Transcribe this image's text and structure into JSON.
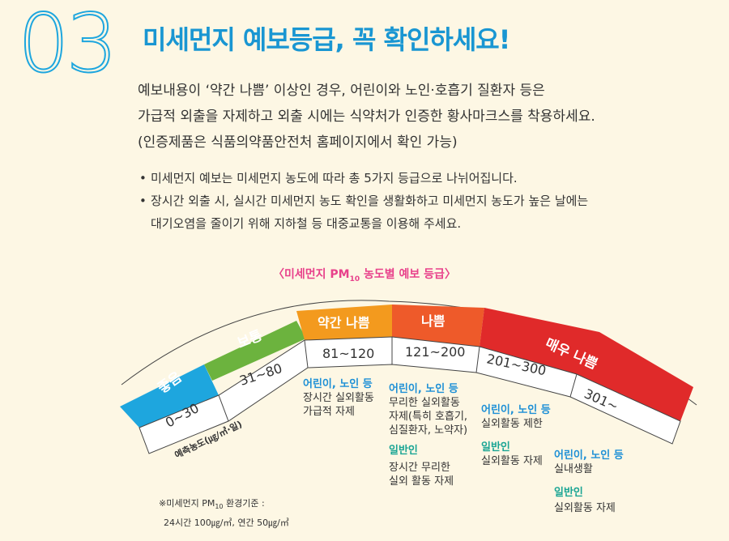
{
  "header": {
    "number": "03",
    "title": "미세먼지 예보등급, 꼭 확인하세요!"
  },
  "intro": {
    "line1": "예보내용이 ‘약간 나쁨’ 이상인 경우, 어린이와 노인·호흡기 질환자 등은",
    "line2": "가급적 외출을 자제하고 외출 시에는 식약처가 인증한 황사마크스를 착용하세요.",
    "line3": "(인증제품은 식품의약품안전처 홈페이지에서 확인 가능)"
  },
  "bullets": {
    "b1": "미세먼지 예보는 미세먼지 농도에 따라 총 5가지 등급으로 나뉘어집니다.",
    "b2_line1": "장시간 외출 시, 실시간 미세먼지 농도 확인을 생활화하고 미세먼지 농도가 높은 날에는",
    "b2_line2": "대기오염을 줄이기 위해 지하철 등 대중교통을 이용해 주세요."
  },
  "chart": {
    "title_pre": "〈미세먼지 PM",
    "title_sub": "10",
    "title_post": " 농도별 예보 등급〉",
    "unit_label": "예측농도(㎍/㎥·일)",
    "grades": [
      {
        "name": "좋음",
        "range": "0~30",
        "color": "#1ea6de"
      },
      {
        "name": "보통",
        "range": "31~80",
        "color": "#6cb33e"
      },
      {
        "name": "약간 나쁨",
        "range": "81~120",
        "color": "#f39a1e"
      },
      {
        "name": "나쁨",
        "range": "121~200",
        "color": "#ee5a2a"
      },
      {
        "name": "매우 나쁨",
        "range": "301~",
        "color": "#e02a2a"
      }
    ],
    "extra_range": "201~300"
  },
  "descriptions": {
    "d1": {
      "head": "어린이, 노인 등",
      "l1": "장시간 실외활동",
      "l2": "가급적 자제"
    },
    "d2": {
      "head": "어린이, 노인 등",
      "l1": "무리한 실외활동",
      "l2": "자제(특히 호흡기,",
      "l3": "심질환자, 노약자)",
      "head2": "일반인",
      "l4": "장시간 무리한",
      "l5": "실외 활동 자제"
    },
    "d3": {
      "head": "어린이, 노인 등",
      "l1": "실외활동 제한",
      "head2": "일반인",
      "l2": "실외활동 자제"
    },
    "d4": {
      "head": "어린이, 노인 등",
      "l1": "실내생활",
      "head2": "일반인",
      "l2": "실외활동 자제"
    }
  },
  "note": {
    "l1_pre": "※미세먼지 PM",
    "l1_sub": "10",
    "l1_post": " 환경기준 :",
    "l2": "24시간 100㎍/㎥, 연간 50㎍/㎥"
  }
}
